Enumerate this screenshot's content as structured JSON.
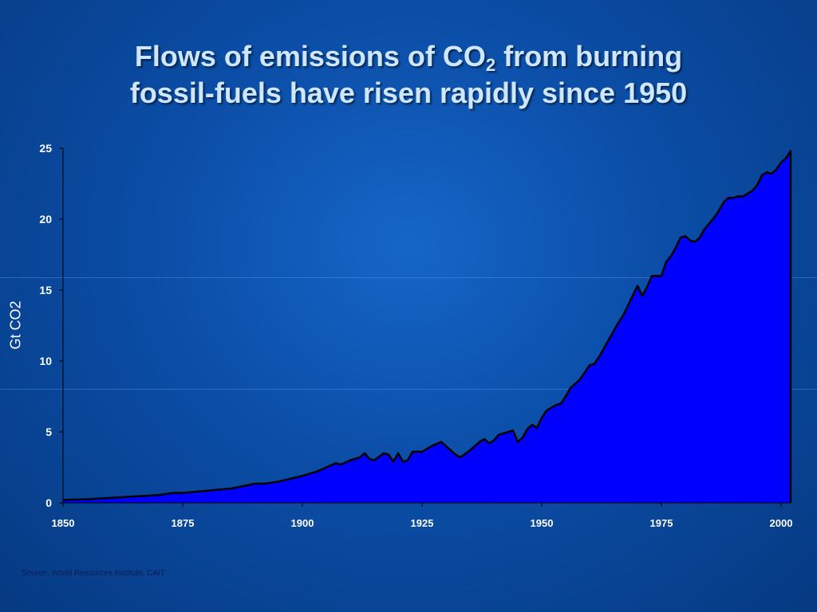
{
  "slide": {
    "title_line1_pre": "Flows of emissions of CO",
    "title_line1_sub": "2",
    "title_line1_post": " from burning",
    "title_line2": "fossil-fuels have risen rapidly since 1950",
    "source": "Source: World Resources Institute, CAIT"
  },
  "chart_data": {
    "type": "area",
    "title": "",
    "xlabel": "",
    "ylabel": "Gt CO2",
    "xlim": [
      1850,
      2002
    ],
    "ylim": [
      0,
      25
    ],
    "x_ticks": [
      1850,
      1875,
      1900,
      1925,
      1950,
      1975,
      2000
    ],
    "y_ticks": [
      0,
      5,
      10,
      15,
      20,
      25
    ],
    "grid": false,
    "legend": "none",
    "colors": {
      "fill": "#0000ff",
      "line": "#000000",
      "axis": "#000000"
    },
    "x": [
      1850,
      1855,
      1860,
      1865,
      1870,
      1873,
      1875,
      1880,
      1883,
      1885,
      1888,
      1890,
      1892,
      1895,
      1900,
      1903,
      1905,
      1907,
      1908,
      1910,
      1912,
      1913,
      1914,
      1915,
      1917,
      1918,
      1919,
      1920,
      1921,
      1922,
      1923,
      1925,
      1927,
      1929,
      1930,
      1932,
      1933,
      1935,
      1937,
      1938,
      1939,
      1940,
      1941,
      1942,
      1943,
      1944,
      1945,
      1946,
      1947,
      1948,
      1949,
      1950,
      1951,
      1952,
      1953,
      1954,
      1955,
      1956,
      1957,
      1958,
      1959,
      1960,
      1961,
      1962,
      1963,
      1964,
      1965,
      1966,
      1967,
      1968,
      1969,
      1970,
      1971,
      1972,
      1973,
      1974,
      1975,
      1976,
      1977,
      1978,
      1979,
      1980,
      1981,
      1982,
      1983,
      1984,
      1985,
      1986,
      1987,
      1988,
      1989,
      1990,
      1991,
      1992,
      1993,
      1994,
      1995,
      1996,
      1997,
      1998,
      1999,
      2000,
      2001,
      2002
    ],
    "values": [
      0.2,
      0.25,
      0.35,
      0.45,
      0.55,
      0.7,
      0.7,
      0.85,
      0.95,
      1.0,
      1.2,
      1.35,
      1.35,
      1.5,
      1.9,
      2.2,
      2.5,
      2.8,
      2.7,
      3.0,
      3.2,
      3.5,
      3.1,
      3.0,
      3.5,
      3.4,
      2.9,
      3.5,
      2.9,
      3.0,
      3.6,
      3.6,
      4.0,
      4.3,
      4.0,
      3.4,
      3.2,
      3.7,
      4.3,
      4.5,
      4.2,
      4.4,
      4.8,
      4.9,
      5.0,
      5.1,
      4.3,
      4.6,
      5.2,
      5.5,
      5.3,
      6.0,
      6.5,
      6.7,
      6.9,
      7.0,
      7.5,
      8.1,
      8.4,
      8.7,
      9.2,
      9.7,
      9.8,
      10.3,
      10.9,
      11.5,
      12.1,
      12.7,
      13.2,
      13.9,
      14.6,
      15.3,
      14.6,
      15.2,
      16.0,
      16.0,
      16.0,
      17.0,
      17.4,
      18.0,
      18.7,
      18.8,
      18.5,
      18.4,
      18.7,
      19.3,
      19.7,
      20.1,
      20.6,
      21.2,
      21.5,
      21.5,
      21.6,
      21.6,
      21.8,
      22.0,
      22.4,
      23.1,
      23.3,
      23.2,
      23.5,
      24.0,
      24.3,
      24.8
    ]
  }
}
